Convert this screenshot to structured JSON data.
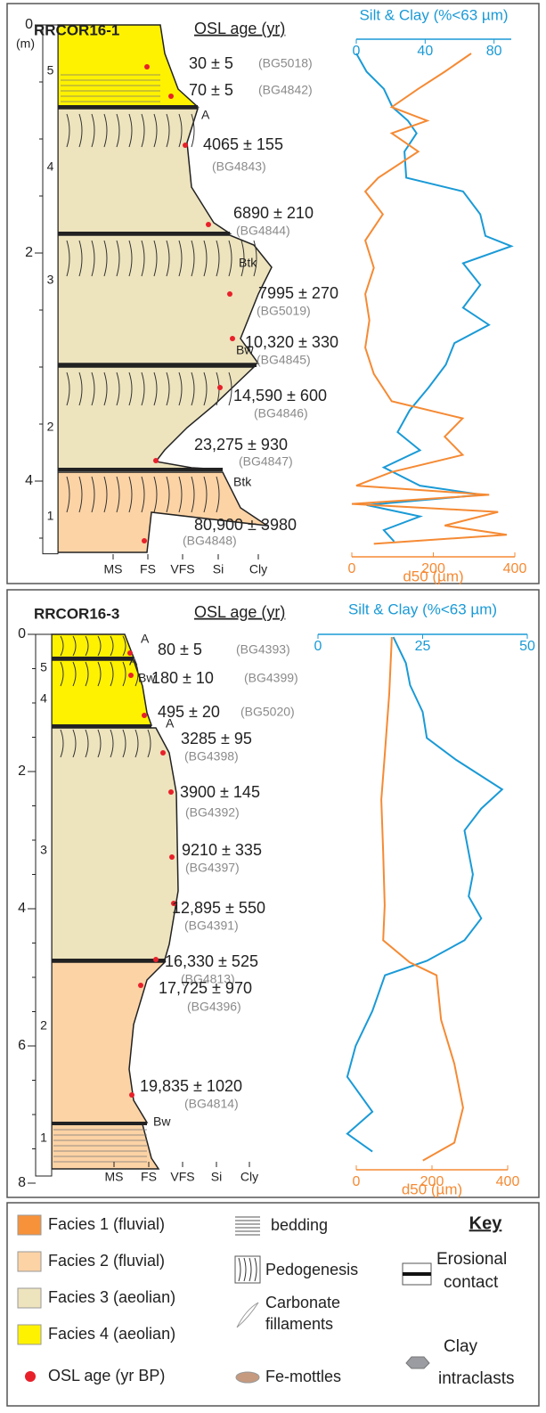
{
  "panels": [
    {
      "title": "RRCOR16-1",
      "osl_header": "OSL age (yr)",
      "depth_unit": "(m)",
      "depth_lim": [
        0,
        4.7
      ],
      "depth_ticks": [
        0,
        2,
        4
      ],
      "units": [
        "5",
        "4",
        "3",
        "2",
        "1"
      ],
      "horizons": [
        "A",
        "Btk",
        "Bw",
        "Btk"
      ],
      "grain_classes": [
        "MS",
        "FS",
        "VFS",
        "Si",
        "Cly"
      ],
      "ages": [
        {
          "age": "30 ± 5",
          "lab": "(BG5018)"
        },
        {
          "age": "70 ± 5",
          "lab": "(BG4842)"
        },
        {
          "age": "4065 ± 155",
          "lab": "(BG4843)"
        },
        {
          "age": "6890 ± 210",
          "lab": "(BG4844)"
        },
        {
          "age": "7995 ± 270",
          "lab": "(BG5019)"
        },
        {
          "age": "10,320 ± 330",
          "lab": "(BG4845)"
        },
        {
          "age": "14,590 ± 600",
          "lab": "(BG4846)"
        },
        {
          "age": "23,275 ± 930",
          "lab": "(BG4847)"
        },
        {
          "age": "80,900 ± 3980",
          "lab": "(BG4848)"
        }
      ],
      "silt_clay": {
        "label": "Silt & Clay (%<63 µm)",
        "color": "#1a9ad6",
        "lim": [
          0,
          90
        ],
        "ticks": [
          0,
          40,
          80
        ],
        "depth": [
          0.25,
          0.41,
          0.56,
          0.72,
          0.84,
          0.95,
          1.11,
          1.34,
          1.46,
          1.66,
          1.85,
          1.94,
          2.09,
          2.28,
          2.48,
          2.63,
          2.79,
          2.98,
          3.18,
          3.38,
          3.57,
          3.73,
          3.88,
          4.04,
          4.12,
          4.21,
          4.31,
          4.43,
          4.53
        ],
        "values": [
          0,
          6,
          16,
          21,
          30,
          35,
          28,
          29,
          62,
          72,
          75,
          90,
          62,
          72,
          62,
          77,
          57,
          52,
          42,
          31,
          24,
          37,
          16,
          37,
          73,
          6,
          37,
          16,
          22
        ]
      },
      "d50": {
        "label": "d50 (µm)",
        "color": "#f58a34",
        "lim": [
          0,
          400
        ],
        "ticks": [
          0,
          200,
          400
        ],
        "depth": [
          0.25,
          0.41,
          0.56,
          0.72,
          0.84,
          0.95,
          1.11,
          1.34,
          1.46,
          1.66,
          1.89,
          2.13,
          2.36,
          2.59,
          2.83,
          3.06,
          3.3,
          3.45,
          3.61,
          3.77,
          3.92,
          4.04,
          4.12,
          4.2,
          4.27,
          4.39,
          4.47,
          4.55
        ],
        "values": [
          293,
          228,
          163,
          98,
          185,
          98,
          163,
          65,
          33,
          76,
          33,
          54,
          33,
          43,
          33,
          54,
          98,
          272,
          228,
          272,
          98,
          11,
          337,
          0,
          359,
          228,
          380,
          54
        ]
      }
    },
    {
      "title": "RRCOR16-3",
      "osl_header": "OSL age (yr)",
      "depth_lim": [
        0,
        8
      ],
      "depth_ticks": [
        0,
        2,
        4,
        6,
        8
      ],
      "units": [
        "5",
        "4",
        "3",
        "2",
        "1"
      ],
      "horizons": [
        "A",
        "A",
        "Bw",
        "A",
        "Bw"
      ],
      "grain_classes": [
        "MS",
        "FS",
        "VFS",
        "Si",
        "Cly"
      ],
      "ages": [
        {
          "age": "80 ± 5",
          "lab": "(BG4393)"
        },
        {
          "age": "180 ± 10",
          "lab": "(BG4399)"
        },
        {
          "age": "495 ± 20",
          "lab": "(BG5020)"
        },
        {
          "age": "3285 ± 95",
          "lab": "(BG4398)"
        },
        {
          "age": "3900 ± 145",
          "lab": "(BG4392)"
        },
        {
          "age": "9210 ± 335",
          "lab": "(BG4397)"
        },
        {
          "age": "12,895 ± 550",
          "lab": "(BG4391)"
        },
        {
          "age": "16,330 ± 525",
          "lab": "(BG4813)"
        },
        {
          "age": "17,725 ± 970",
          "lab": "(BG4396)"
        },
        {
          "age": "19,835 ± 1020",
          "lab": "(BG4814)"
        }
      ],
      "silt_clay": {
        "label": "Silt & Clay (%<63 µm)",
        "color": "#1a9ad6",
        "lim": [
          0,
          50
        ],
        "ticks": [
          0,
          25,
          50
        ],
        "depth": [
          0.04,
          0.42,
          0.74,
          1.13,
          1.51,
          1.83,
          2.26,
          2.54,
          2.86,
          3.18,
          3.5,
          3.82,
          4.14,
          4.46,
          4.76,
          4.97,
          5.49,
          6.0,
          6.45,
          6.96,
          7.28,
          7.54
        ],
        "values": [
          18,
          21,
          22,
          25,
          26,
          33,
          44,
          39,
          35,
          36,
          37,
          36,
          39,
          35,
          26,
          16,
          13,
          9,
          7,
          13,
          7,
          13
        ]
      },
      "d50": {
        "label": "d50 (µm)",
        "color": "#f58a34",
        "lim": [
          0,
          400
        ],
        "ticks": [
          0,
          200,
          400
        ],
        "depth": [
          0.04,
          0.87,
          1.77,
          2.41,
          3.18,
          3.95,
          4.46,
          4.78,
          4.97,
          5.62,
          6.26,
          6.9,
          7.41,
          7.67
        ],
        "values": [
          94,
          87,
          75,
          66,
          71,
          75,
          71,
          141,
          212,
          224,
          259,
          282,
          259,
          176
        ]
      }
    }
  ],
  "key": {
    "title": "Key",
    "facies": [
      {
        "label": "Facies 1 (fluvial)",
        "color": "#f7923a"
      },
      {
        "label": "Facies 2 (fluvial)",
        "color": "#fcd3a5"
      },
      {
        "label": "Facies 3 (aeolian)",
        "color": "#ede3bd"
      },
      {
        "label": "Facies 4 (aeolian)",
        "color": "#fff200"
      }
    ],
    "osl": {
      "label": "OSL age (yr BP)",
      "color": "#e8202a"
    },
    "bedding": "bedding",
    "pedogenesis": "Pedogenesis",
    "carbonate": [
      "Carbonate",
      "fillaments"
    ],
    "fe_mottles": "Fe-mottles",
    "erosional": [
      "Erosional",
      "contact"
    ],
    "clay": [
      "Clay",
      "intraclasts"
    ]
  }
}
